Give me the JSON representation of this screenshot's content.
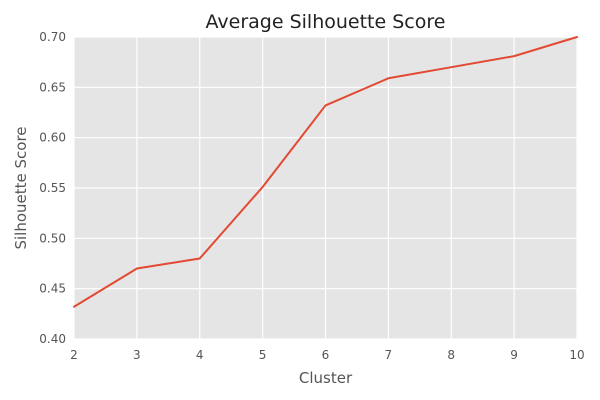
{
  "chart_data": {
    "type": "line",
    "title": "Average Silhouette Score",
    "xlabel": "Cluster",
    "ylabel": "Silhouette Score",
    "x": [
      2,
      3,
      4,
      5,
      6,
      7,
      8,
      9,
      10
    ],
    "series": [
      {
        "values": [
          0.432,
          0.47,
          0.48,
          0.551,
          0.632,
          0.659,
          0.67,
          0.681,
          0.7
        ],
        "color": "#E24A33"
      }
    ],
    "xlim": [
      2,
      10
    ],
    "ylim": [
      0.4,
      0.7
    ],
    "x_ticks": [
      2,
      3,
      4,
      5,
      6,
      7,
      8,
      9,
      10
    ],
    "y_ticks": [
      0.4,
      0.45,
      0.5,
      0.55,
      0.6,
      0.65,
      0.7
    ],
    "y_tick_labels": [
      "0.40",
      "0.45",
      "0.50",
      "0.55",
      "0.60",
      "0.65",
      "0.70"
    ],
    "grid": true,
    "plot_background": "#E5E5E5",
    "grid_color": "#FFFFFF"
  }
}
